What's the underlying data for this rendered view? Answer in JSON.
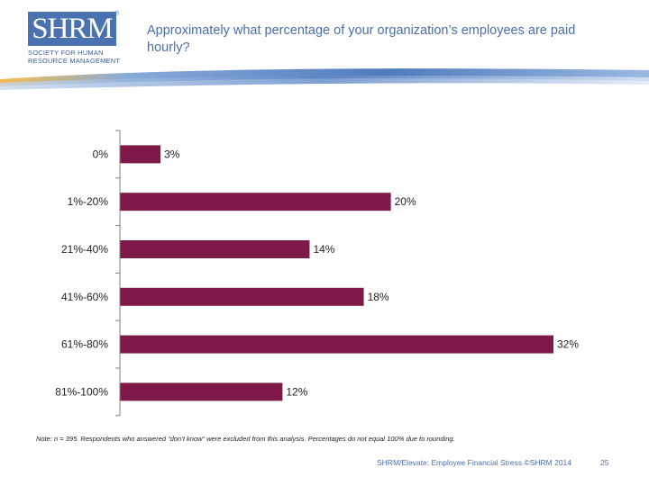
{
  "logo": {
    "mark": "SHRM",
    "registered": "®",
    "tagline_line1": "SOCIETY FOR HUMAN",
    "tagline_line2": "RESOURCE MANAGEMENT"
  },
  "colors": {
    "bar": "#7f1947",
    "axis": "#808080",
    "title": "#4a6ea6",
    "brand": "#4a72b0"
  },
  "chart_data": {
    "type": "bar",
    "orientation": "horizontal",
    "title": "Approximately what percentage of your organization’s employees are paid hourly?",
    "categories": [
      "0%",
      "1%-20%",
      "21%-40%",
      "41%-60%",
      "61%-80%",
      "81%-100%"
    ],
    "values": [
      3,
      20,
      14,
      18,
      32,
      12
    ],
    "data_labels": [
      "3%",
      "20%",
      "14%",
      "18%",
      "32%",
      "12%"
    ],
    "xlim": [
      0,
      32
    ],
    "xlabel": "",
    "ylabel": "",
    "grid": false,
    "legend": "none"
  },
  "note": "Note: n = 395. Respondents who answered “don’t know” were excluded from this analysis. Percentages do not equal 100% due to rounding.",
  "footer": {
    "source": "SHRM/Elevate: Employee Financial Stress ©SHRM 2014",
    "page": "25"
  }
}
